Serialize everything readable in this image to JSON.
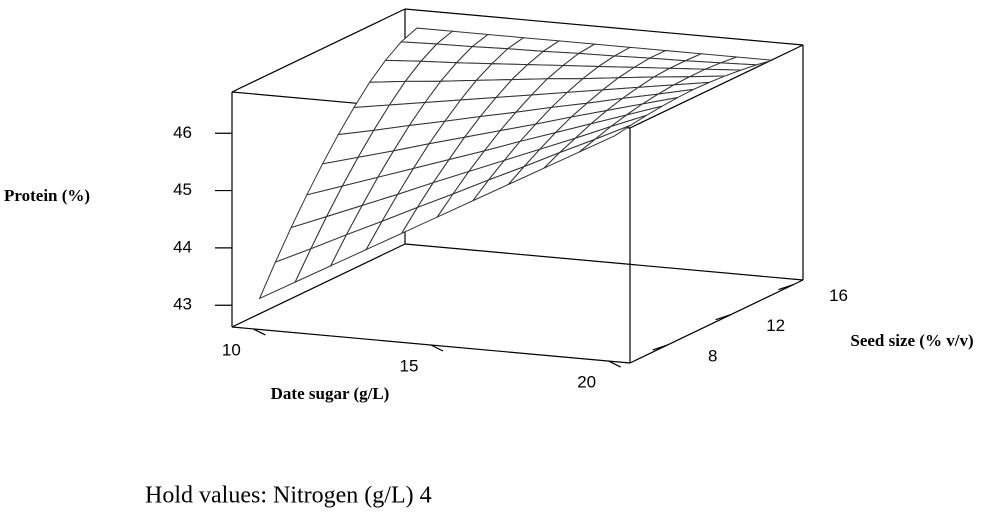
{
  "chart_data": {
    "type": "surface",
    "x_label": "Date sugar (g/L)",
    "y_label": "Seed size (% v/v)",
    "z_label": "Protein (%)",
    "note": "Hold values: Nitrogen (g/L) 4",
    "xlim": [
      9.4,
      20.6
    ],
    "ylim": [
      5.6,
      16.6
    ],
    "zlim": [
      42.62,
      46.72
    ],
    "xticks": [
      10,
      15,
      20
    ],
    "yticks": [
      8,
      12,
      16
    ],
    "zticks": [
      43,
      44,
      45,
      46
    ],
    "color": "#333333",
    "x": [
      10,
      11,
      12,
      13,
      14,
      15,
      16,
      17,
      18,
      19,
      20
    ],
    "y": [
      6,
      7,
      8,
      9,
      10,
      11,
      12,
      13,
      14,
      15,
      16
    ],
    "z": [
      [
        43.1,
        43.44,
        43.78,
        44.12,
        44.46,
        44.8,
        45.14,
        45.48,
        45.82,
        46.16,
        46.5
      ],
      [
        43.6,
        43.89,
        44.19,
        44.48,
        44.78,
        45.07,
        45.37,
        45.66,
        45.96,
        46.25,
        46.55
      ],
      [
        44.07,
        44.32,
        44.57,
        44.82,
        45.08,
        45.33,
        45.58,
        45.83,
        46.08,
        46.34,
        46.59
      ],
      [
        44.51,
        44.72,
        44.93,
        45.14,
        45.35,
        45.56,
        45.78,
        45.99,
        46.2,
        46.41,
        46.62
      ],
      [
        44.92,
        45.09,
        45.26,
        45.44,
        45.61,
        45.78,
        45.95,
        46.13,
        46.3,
        46.47,
        46.64
      ],
      [
        45.3,
        45.43,
        45.57,
        45.7,
        45.84,
        45.97,
        46.11,
        46.24,
        46.38,
        46.51,
        46.65
      ],
      [
        45.64,
        45.74,
        45.84,
        45.94,
        46.04,
        46.14,
        46.24,
        46.34,
        46.44,
        46.54,
        46.64
      ],
      [
        45.95,
        46.02,
        46.08,
        46.15,
        46.22,
        46.29,
        46.35,
        46.42,
        46.49,
        46.55,
        46.62
      ],
      [
        46.2,
        46.24,
        46.27,
        46.31,
        46.35,
        46.39,
        46.43,
        46.47,
        46.51,
        46.55,
        46.59
      ],
      [
        46.39,
        46.41,
        46.42,
        46.44,
        46.45,
        46.47,
        46.48,
        46.5,
        46.51,
        46.53,
        46.55
      ],
      [
        46.5,
        46.5,
        46.5,
        46.5,
        46.5,
        46.5,
        46.5,
        46.5,
        46.5,
        46.5,
        46.5
      ]
    ]
  }
}
